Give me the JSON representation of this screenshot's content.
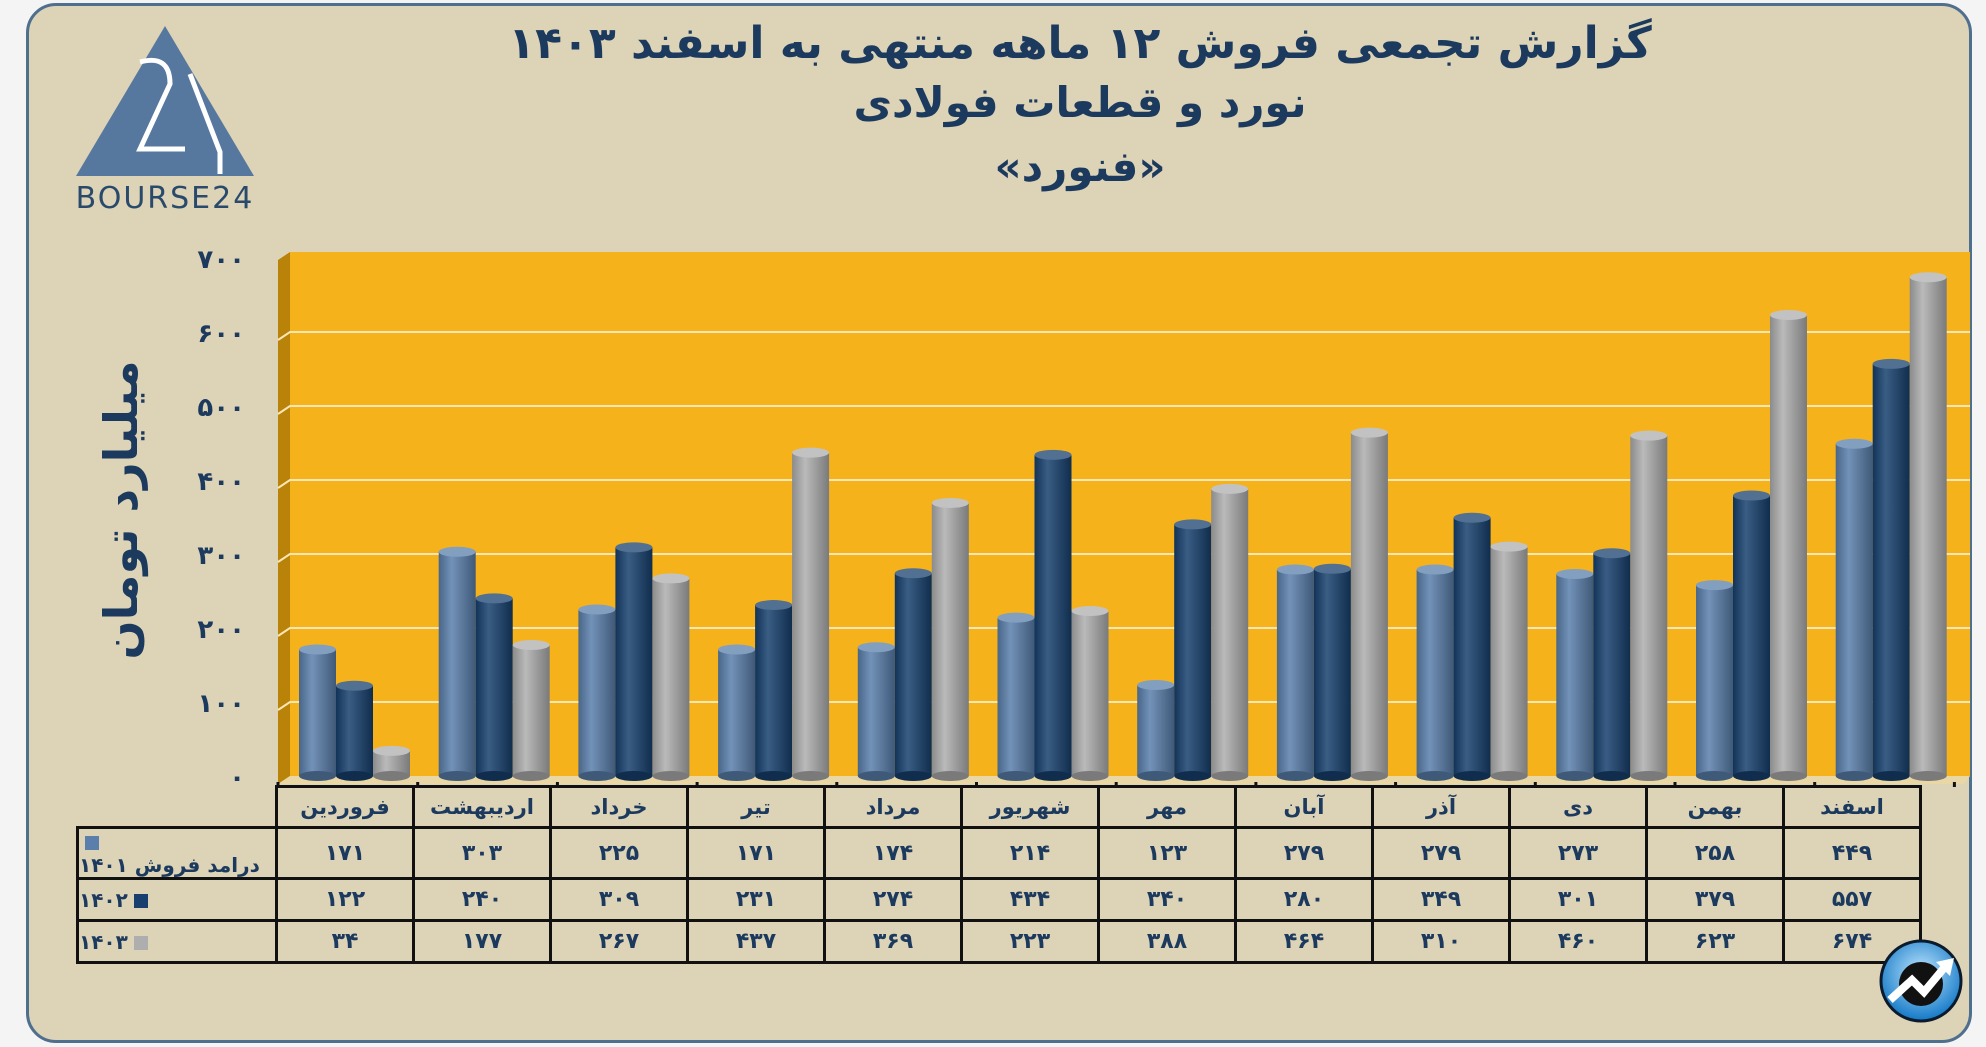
{
  "title": {
    "line1": "گزارش تجمعی فروش ۱۲ ماهه منتهی به اسفند ۱۴۰۳",
    "line2": "نورد و قطعات فولادی",
    "line3": "«فنورد»"
  },
  "logo": {
    "text": "BOURSE24"
  },
  "colors": {
    "background": "#ddd3b7",
    "plot": "#f5b11c",
    "s1401": "#5a7fab",
    "s1402": "#17406e",
    "s1403": "#aeaeae",
    "text": "#1c3a5e"
  },
  "chart_data": {
    "type": "bar",
    "title": "گزارش تجمعی فروش ۱۲ ماهه منتهی به اسفند ۱۴۰۳",
    "ylabel": "میلیارد تومان",
    "xlabel": "",
    "ylim": [
      0,
      700
    ],
    "yticks": [
      0,
      100,
      200,
      300,
      400,
      500,
      600,
      700
    ],
    "ytick_labels": [
      "۰",
      "۱۰۰",
      "۲۰۰",
      "۳۰۰",
      "۴۰۰",
      "۵۰۰",
      "۶۰۰",
      "۷۰۰"
    ],
    "grid": true,
    "categories": [
      "فروردین",
      "اردیبهشت",
      "خرداد",
      "تیر",
      "مرداد",
      "شهریور",
      "مهر",
      "آبان",
      "آذر",
      "دی",
      "بهمن",
      "اسفند"
    ],
    "series": [
      {
        "name": "درامد فروش ۱۴۰۱",
        "color": "#5a7fab",
        "values": [
          171,
          303,
          225,
          171,
          174,
          214,
          123,
          279,
          279,
          273,
          258,
          449
        ]
      },
      {
        "name": "۱۴۰۲",
        "color": "#17406e",
        "values": [
          122,
          240,
          309,
          231,
          274,
          434,
          340,
          280,
          349,
          301,
          379,
          557
        ]
      },
      {
        "name": "۱۴۰۳",
        "color": "#aeaeae",
        "values": [
          34,
          177,
          267,
          437,
          369,
          223,
          388,
          464,
          310,
          460,
          623,
          674
        ]
      }
    ]
  },
  "table": {
    "rows": [
      {
        "label": "درامد فروش ۱۴۰۱",
        "cells": [
          "۱۷۱",
          "۳۰۳",
          "۲۲۵",
          "۱۷۱",
          "۱۷۴",
          "۲۱۴",
          "۱۲۳",
          "۲۷۹",
          "۲۷۹",
          "۲۷۳",
          "۲۵۸",
          "۴۴۹"
        ]
      },
      {
        "label": "۱۴۰۲",
        "cells": [
          "۱۲۲",
          "۲۴۰",
          "۳۰۹",
          "۲۳۱",
          "۲۷۴",
          "۴۳۴",
          "۳۴۰",
          "۲۸۰",
          "۳۴۹",
          "۳۰۱",
          "۳۷۹",
          "۵۵۷"
        ]
      },
      {
        "label": "۱۴۰۳",
        "cells": [
          "۳۴",
          "۱۷۷",
          "۲۶۷",
          "۴۳۷",
          "۳۶۹",
          "۲۲۳",
          "۳۸۸",
          "۴۶۴",
          "۳۱۰",
          "۴۶۰",
          "۶۲۳",
          "۶۷۴"
        ]
      }
    ]
  },
  "corner_icon": "trending-up-icon"
}
